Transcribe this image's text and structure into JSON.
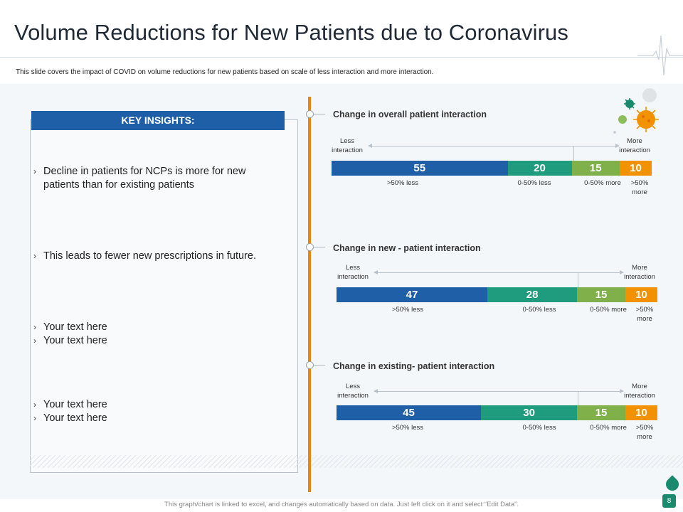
{
  "title": "Volume Reductions for New Patients due to Coronavirus",
  "subtitle": "This slide covers the impact of COVID  on volume reductions for new patients based on scale of less interaction and more interaction.",
  "insights": {
    "heading": "KEY INSIGHTS:",
    "bullets": [
      "Decline in patients for NCPs is more for new patients than for existing patients",
      "This leads to fewer new prescriptions in future.",
      "Your text here",
      "Your text here",
      "Your text here",
      "Your text here"
    ]
  },
  "scale": {
    "less": "Less interaction",
    "more": "More interaction"
  },
  "chart_data": {
    "type": "bar",
    "stacked": true,
    "orientation": "horizontal",
    "categories": [
      ">50% less",
      "0-50% less",
      "0-50% more",
      ">50% more"
    ],
    "colors": [
      "#1f5fa8",
      "#1f9b7d",
      "#7fb04a",
      "#f39200"
    ],
    "panels": [
      {
        "title": "Change in overall patient interaction",
        "values": [
          55,
          20,
          15,
          10
        ]
      },
      {
        "title": "Change in new - patient interaction",
        "values": [
          47,
          28,
          15,
          10
        ]
      },
      {
        "title": "Change in existing- patient interaction",
        "values": [
          45,
          30,
          15,
          10
        ]
      }
    ]
  },
  "footer": "This graph/chart is linked to excel, and changes automatically based on data. Just left click on it and select “Edit Data”.",
  "page_number": "8"
}
